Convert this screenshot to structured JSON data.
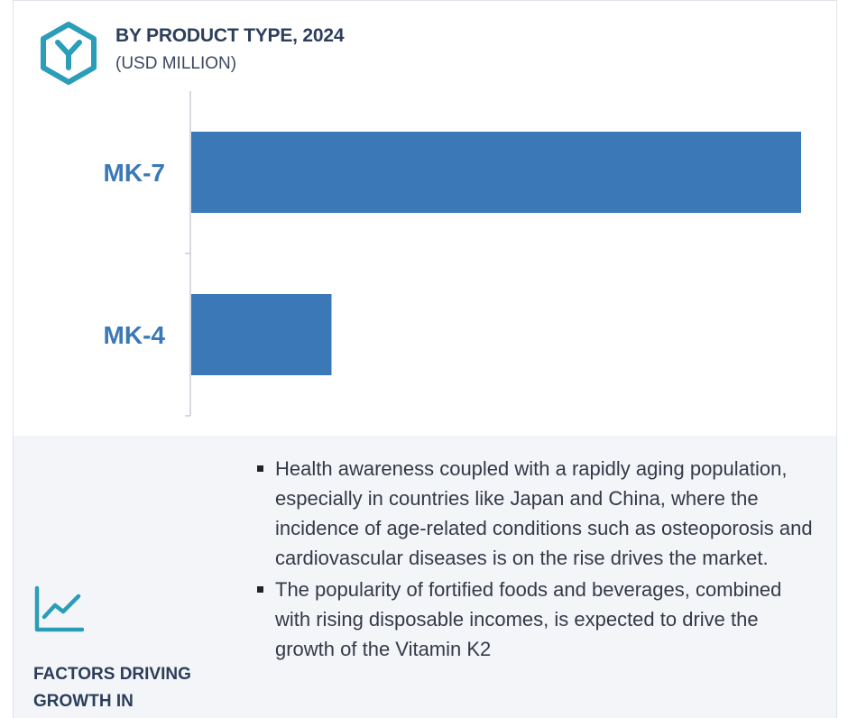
{
  "header": {
    "title": "BY PRODUCT TYPE, 2024",
    "subtitle": "(USD MILLION)",
    "icon": "hexagon-y-icon",
    "accent_color": "#2b9db8"
  },
  "chart_data": {
    "type": "bar",
    "orientation": "horizontal",
    "title": "BY PRODUCT TYPE, 2024",
    "subtitle": "(USD MILLION)",
    "categories": [
      "MK-7",
      "MK-4"
    ],
    "values": [
      100,
      23
    ],
    "value_note": "relative bar lengths; no axis values printed",
    "bar_color": "#3a78b8",
    "label_color": "#3a78b8",
    "grid": false,
    "legend": "none"
  },
  "factors": {
    "icon": "line-chart-icon",
    "heading": "FACTORS DRIVING GROWTH IN",
    "items": [
      "Health awareness coupled with a rapidly aging population, especially in countries like Japan and China, where the incidence of age-related conditions such as osteoporosis and cardiovascular diseases is on the rise drives the market.",
      "The popularity of fortified foods and beverages, combined with rising disposable incomes, is expected to drive the growth of the Vitamin K2"
    ]
  }
}
